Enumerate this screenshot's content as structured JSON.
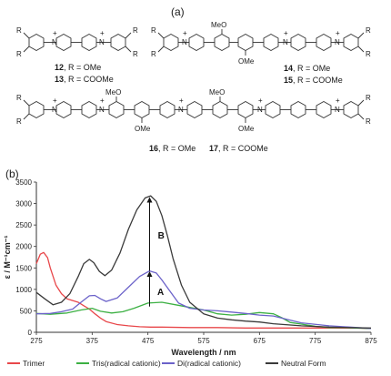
{
  "panel_a_label": "(a)",
  "panel_b_label": "(b)",
  "structures": {
    "atom_R": "R",
    "atom_N": "N",
    "plus": "+",
    "atom_OMe": "OMe",
    "atom_MeO": "MeO",
    "c12": {
      "num": "12",
      "text": ", R = OMe"
    },
    "c13": {
      "num": "13",
      "text": ", R = COOMe"
    },
    "c14": {
      "num": "14",
      "text": ", R = OMe"
    },
    "c15": {
      "num": "15",
      "text": ", R = COOMe"
    },
    "c16": {
      "num": "16",
      "text": ", R = OMe"
    },
    "c17": {
      "num": "17",
      "text": ", R = COOMe"
    }
  },
  "chart_data": {
    "type": "line",
    "xlabel": "Wavelength / nm",
    "ylabel": "ε / M⁻¹cm⁻¹",
    "xlim": [
      275,
      875
    ],
    "ylim": [
      0,
      3500
    ],
    "xticks": [
      275,
      375,
      475,
      575,
      675,
      775,
      875
    ],
    "yticks": [
      0,
      500,
      1000,
      1500,
      2000,
      2500,
      3000,
      3500
    ],
    "grid": false,
    "legend_position": "bottom",
    "annotations": [
      {
        "text": "A",
        "x": 482,
        "y": 950
      },
      {
        "text": "B",
        "x": 483,
        "y": 2270
      }
    ],
    "arrows": [
      {
        "x": 478,
        "from": 600,
        "to": 1420
      },
      {
        "x": 478,
        "from": 1430,
        "to": 3150
      }
    ],
    "series": [
      {
        "name": "Trimer",
        "color": "#e8474a",
        "x": [
          275,
          282,
          288,
          295,
          300,
          310,
          320,
          330,
          340,
          350,
          360,
          370,
          380,
          390,
          400,
          420,
          440,
          460,
          480,
          500,
          550,
          600,
          650,
          700,
          750,
          800,
          850,
          875
        ],
        "y": [
          1600,
          1820,
          1860,
          1740,
          1500,
          1100,
          900,
          780,
          740,
          700,
          620,
          540,
          430,
          330,
          250,
          180,
          150,
          130,
          120,
          120,
          110,
          110,
          100,
          100,
          100,
          100,
          100,
          90
        ]
      },
      {
        "name": "Tris(radical cationic)",
        "color": "#3cb043",
        "x": [
          275,
          300,
          330,
          355,
          375,
          390,
          410,
          430,
          450,
          475,
          500,
          525,
          550,
          575,
          600,
          625,
          650,
          675,
          700,
          715,
          730,
          750,
          775,
          800,
          825,
          850,
          875
        ],
        "y": [
          440,
          420,
          450,
          520,
          560,
          490,
          450,
          480,
          560,
          680,
          700,
          640,
          580,
          520,
          430,
          400,
          420,
          460,
          430,
          340,
          230,
          190,
          140,
          110,
          110,
          100,
          90
        ]
      },
      {
        "name": "Di(radical cationic)",
        "color": "#6b62c9",
        "x": [
          275,
          300,
          320,
          340,
          355,
          370,
          380,
          390,
          400,
          420,
          440,
          460,
          478,
          490,
          500,
          515,
          530,
          550,
          575,
          600,
          625,
          650,
          675,
          700,
          725,
          750,
          800,
          850,
          875
        ],
        "y": [
          430,
          440,
          480,
          540,
          700,
          850,
          860,
          780,
          720,
          800,
          1050,
          1300,
          1430,
          1380,
          1220,
          950,
          680,
          560,
          520,
          500,
          470,
          440,
          400,
          380,
          300,
          220,
          150,
          110,
          90
        ]
      },
      {
        "name": "Neutral Form",
        "color": "#3a3a3a",
        "x": [
          275,
          290,
          305,
          320,
          335,
          350,
          360,
          370,
          378,
          388,
          398,
          410,
          425,
          440,
          455,
          470,
          480,
          490,
          500,
          510,
          520,
          535,
          550,
          575,
          600,
          625,
          650,
          675,
          700,
          750,
          800,
          875
        ],
        "y": [
          930,
          780,
          640,
          700,
          900,
          1300,
          1600,
          1700,
          1620,
          1420,
          1320,
          1450,
          1850,
          2400,
          2850,
          3130,
          3180,
          3050,
          2720,
          2250,
          1720,
          1100,
          700,
          430,
          330,
          290,
          260,
          240,
          200,
          150,
          120,
          100
        ]
      }
    ]
  }
}
